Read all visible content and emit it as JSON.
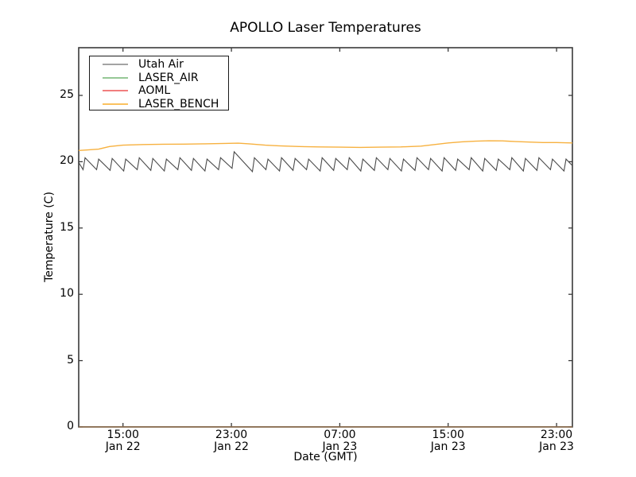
{
  "chart_data": {
    "type": "line",
    "title": "APOLLO Laser Temperatures",
    "xlabel": "Date (GMT)",
    "ylabel": "Temperature (C)",
    "x_unit": "hours since Jan 22 00:00 GMT",
    "xlim": [
      11.73,
      48.17
    ],
    "ylim": [
      0,
      28.6
    ],
    "grid": false,
    "tick_direction": "in",
    "axis_color": "#3a3a3a",
    "background_color": "#ffffff",
    "y_ticks": [
      {
        "v": 0,
        "label": "0"
      },
      {
        "v": 5,
        "label": "5"
      },
      {
        "v": 10,
        "label": "10"
      },
      {
        "v": 15,
        "label": "15"
      },
      {
        "v": 20,
        "label": "20"
      },
      {
        "v": 25,
        "label": "25"
      }
    ],
    "x_ticks": [
      {
        "t": 15,
        "time": "15:00",
        "date": "Jan 22"
      },
      {
        "t": 23,
        "time": "23:00",
        "date": "Jan 22"
      },
      {
        "t": 31,
        "time": "07:00",
        "date": "Jan 23"
      },
      {
        "t": 39,
        "time": "15:00",
        "date": "Jan 23"
      },
      {
        "t": 47,
        "time": "23:00",
        "date": "Jan 23"
      }
    ],
    "legend": {
      "position": "upper left",
      "entries": [
        "Utah Air",
        "LASER_AIR",
        "AOML",
        "LASER_BENCH"
      ]
    },
    "series": [
      {
        "name": "Utah Air",
        "legend_color": "#a3a3a3",
        "line_color": "#4a4a4a",
        "opacity": 1,
        "points": [
          [
            11.73,
            19.95
          ],
          [
            12.05,
            19.4
          ],
          [
            12.2,
            20.3
          ],
          [
            13.05,
            19.4
          ],
          [
            13.2,
            20.2
          ],
          [
            14.05,
            19.35
          ],
          [
            14.2,
            20.25
          ],
          [
            15.05,
            19.3
          ],
          [
            15.2,
            20.2
          ],
          [
            16.05,
            19.4
          ],
          [
            16.2,
            20.3
          ],
          [
            17.05,
            19.35
          ],
          [
            17.2,
            20.25
          ],
          [
            18.05,
            19.3
          ],
          [
            18.2,
            20.2
          ],
          [
            19.05,
            19.4
          ],
          [
            19.2,
            20.3
          ],
          [
            20.05,
            19.35
          ],
          [
            20.2,
            20.25
          ],
          [
            21.05,
            19.3
          ],
          [
            21.2,
            20.2
          ],
          [
            22.05,
            19.4
          ],
          [
            22.2,
            20.3
          ],
          [
            23.05,
            19.5
          ],
          [
            23.2,
            20.75
          ],
          [
            24.55,
            19.25
          ],
          [
            24.7,
            20.3
          ],
          [
            25.55,
            19.4
          ],
          [
            25.7,
            20.2
          ],
          [
            26.55,
            19.3
          ],
          [
            26.7,
            20.3
          ],
          [
            27.55,
            19.35
          ],
          [
            27.7,
            20.25
          ],
          [
            28.55,
            19.4
          ],
          [
            28.7,
            20.2
          ],
          [
            29.55,
            19.3
          ],
          [
            29.7,
            20.3
          ],
          [
            30.55,
            19.35
          ],
          [
            30.7,
            20.25
          ],
          [
            31.55,
            19.4
          ],
          [
            31.7,
            20.3
          ],
          [
            32.55,
            19.3
          ],
          [
            32.7,
            20.2
          ],
          [
            33.55,
            19.35
          ],
          [
            33.7,
            20.3
          ],
          [
            34.55,
            19.4
          ],
          [
            34.7,
            20.25
          ],
          [
            35.55,
            19.3
          ],
          [
            35.7,
            20.2
          ],
          [
            36.55,
            19.35
          ],
          [
            36.7,
            20.3
          ],
          [
            37.55,
            19.4
          ],
          [
            37.7,
            20.25
          ],
          [
            38.55,
            19.3
          ],
          [
            38.7,
            20.3
          ],
          [
            39.55,
            19.35
          ],
          [
            39.7,
            20.2
          ],
          [
            40.55,
            19.4
          ],
          [
            40.7,
            20.3
          ],
          [
            41.55,
            19.3
          ],
          [
            41.7,
            20.25
          ],
          [
            42.55,
            19.35
          ],
          [
            42.7,
            20.2
          ],
          [
            43.55,
            19.4
          ],
          [
            43.7,
            20.3
          ],
          [
            44.55,
            19.3
          ],
          [
            44.7,
            20.25
          ],
          [
            45.55,
            19.35
          ],
          [
            45.7,
            20.3
          ],
          [
            46.55,
            19.4
          ],
          [
            46.7,
            20.2
          ],
          [
            47.55,
            19.3
          ],
          [
            47.7,
            20.2
          ],
          [
            48.17,
            19.7
          ]
        ]
      },
      {
        "name": "LASER_AIR",
        "legend_color": "#96c896",
        "line_color": "#7cbf7c",
        "opacity": 0.6,
        "points": [
          [
            11.73,
            0
          ],
          [
            48.17,
            0
          ]
        ]
      },
      {
        "name": "AOML",
        "legend_color": "#f17e7e",
        "line_color": "#cc4433",
        "opacity": 0.45,
        "points": [
          [
            11.73,
            0
          ],
          [
            48.17,
            0
          ]
        ]
      },
      {
        "name": "LASER_BENCH",
        "legend_color": "#fbc25f",
        "line_color": "#f7b13f",
        "opacity": 1,
        "points": [
          [
            11.73,
            20.85
          ],
          [
            12.5,
            20.9
          ],
          [
            13.2,
            20.95
          ],
          [
            14.0,
            21.15
          ],
          [
            15.0,
            21.25
          ],
          [
            16.5,
            21.3
          ],
          [
            18.0,
            21.32
          ],
          [
            19.5,
            21.33
          ],
          [
            21.0,
            21.35
          ],
          [
            22.5,
            21.38
          ],
          [
            23.5,
            21.4
          ],
          [
            24.3,
            21.35
          ],
          [
            25.5,
            21.25
          ],
          [
            26.5,
            21.2
          ],
          [
            28.0,
            21.15
          ],
          [
            29.5,
            21.12
          ],
          [
            31.0,
            21.1
          ],
          [
            32.5,
            21.08
          ],
          [
            34.0,
            21.1
          ],
          [
            35.5,
            21.12
          ],
          [
            37.0,
            21.18
          ],
          [
            38.0,
            21.3
          ],
          [
            39.0,
            21.42
          ],
          [
            40.0,
            21.5
          ],
          [
            41.0,
            21.55
          ],
          [
            42.0,
            21.58
          ],
          [
            43.0,
            21.57
          ],
          [
            44.0,
            21.52
          ],
          [
            45.0,
            21.48
          ],
          [
            46.0,
            21.45
          ],
          [
            47.0,
            21.45
          ],
          [
            48.17,
            21.42
          ]
        ]
      }
    ]
  }
}
